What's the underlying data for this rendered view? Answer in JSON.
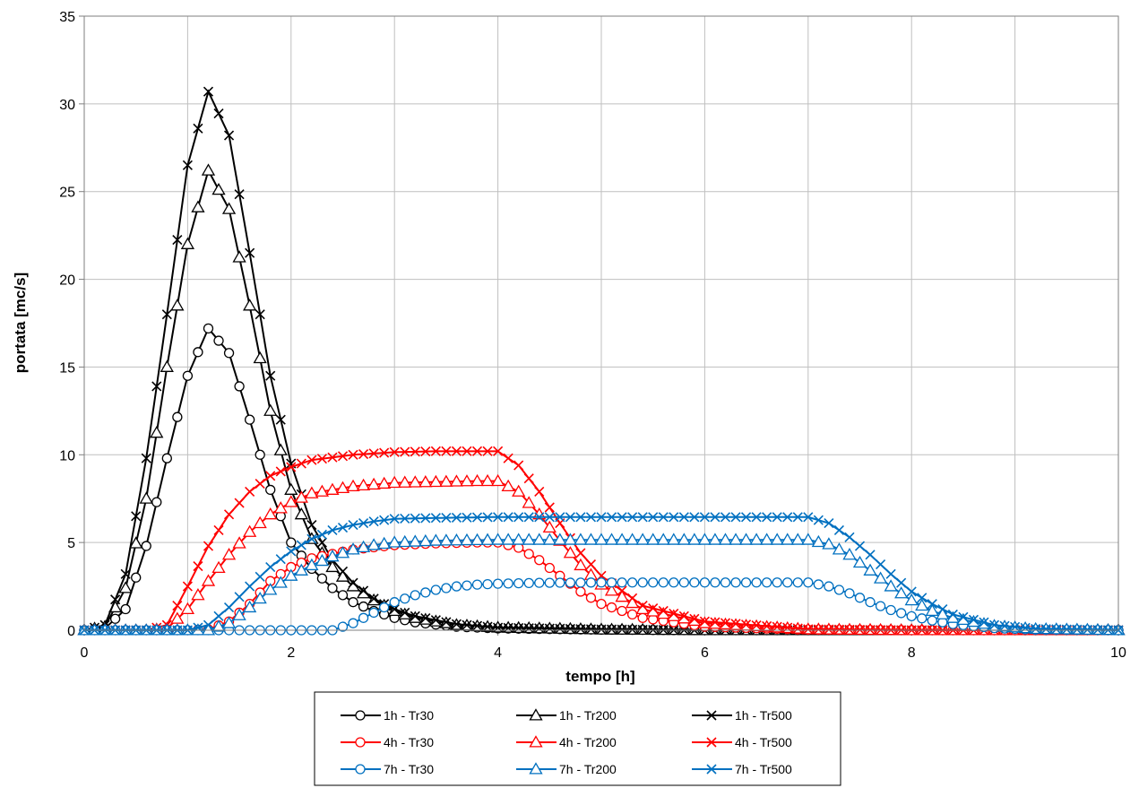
{
  "chart_data": {
    "type": "line",
    "title": "",
    "xlabel": "tempo [h]",
    "ylabel": "portata [mc/s]",
    "xlim": [
      0,
      10
    ],
    "ylim": [
      0,
      35
    ],
    "x_ticks": [
      "0",
      "2",
      "4",
      "6",
      "8",
      "10"
    ],
    "y_ticks": [
      "0",
      "5",
      "10",
      "15",
      "20",
      "25",
      "30",
      "35"
    ],
    "grid": true,
    "legend_position": "bottom",
    "series": [
      {
        "name": "1h - Tr30",
        "color": "#000000",
        "marker": "circle",
        "x": [
          0,
          0.2,
          0.4,
          0.6,
          0.8,
          1.0,
          1.2,
          1.4,
          1.6,
          1.8,
          2.0,
          2.2,
          2.4,
          2.6,
          2.8,
          3.0,
          3.2,
          3.6,
          4.0,
          5.0,
          6.0,
          8.0,
          10.0
        ],
        "y": [
          0,
          0.1,
          1.2,
          4.8,
          9.8,
          14.5,
          17.2,
          15.8,
          12.0,
          8.0,
          5.0,
          3.5,
          2.4,
          1.6,
          1.1,
          0.7,
          0.45,
          0.2,
          0.1,
          0.03,
          0.0,
          0.0,
          0.0
        ]
      },
      {
        "name": "1h - Tr200",
        "color": "#000000",
        "marker": "triangle",
        "x": [
          0,
          0.2,
          0.4,
          0.6,
          0.8,
          1.0,
          1.2,
          1.4,
          1.6,
          1.8,
          2.0,
          2.2,
          2.4,
          2.6,
          2.8,
          3.0,
          3.2,
          3.6,
          4.0,
          5.0,
          6.0,
          8.0,
          10.0
        ],
        "y": [
          0,
          0.2,
          2.4,
          7.5,
          15.0,
          22.0,
          26.2,
          24.0,
          18.5,
          12.5,
          8.0,
          5.2,
          3.6,
          2.5,
          1.7,
          1.1,
          0.7,
          0.3,
          0.15,
          0.04,
          0.0,
          0.0,
          0.0
        ]
      },
      {
        "name": "1h - Tr500",
        "color": "#000000",
        "marker": "x",
        "x": [
          0,
          0.2,
          0.4,
          0.6,
          0.8,
          1.0,
          1.2,
          1.4,
          1.6,
          1.8,
          2.0,
          2.2,
          2.4,
          2.6,
          2.8,
          3.0,
          3.2,
          3.6,
          4.0,
          5.0,
          6.0,
          8.0,
          10.0
        ],
        "y": [
          0,
          0.3,
          3.2,
          9.8,
          18.0,
          26.5,
          30.7,
          28.2,
          21.5,
          14.5,
          9.5,
          6.0,
          4.0,
          2.7,
          1.8,
          1.2,
          0.8,
          0.35,
          0.15,
          0.05,
          0.0,
          0.0,
          0.0
        ]
      },
      {
        "name": "4h - Tr30",
        "color": "#ff0000",
        "marker": "circle",
        "x": [
          0,
          0.6,
          1.0,
          1.2,
          1.4,
          1.6,
          1.8,
          2.0,
          2.2,
          2.6,
          3.0,
          3.4,
          3.8,
          4.0,
          4.2,
          4.4,
          4.6,
          4.8,
          5.0,
          5.4,
          6.0,
          7.0,
          8.0,
          10.0
        ],
        "y": [
          0,
          0,
          0,
          0.05,
          0.5,
          1.5,
          2.8,
          3.6,
          4.1,
          4.6,
          4.85,
          4.95,
          5.0,
          5.0,
          4.7,
          4.0,
          3.1,
          2.2,
          1.5,
          0.7,
          0.2,
          0.03,
          0,
          0
        ]
      },
      {
        "name": "4h - Tr200",
        "color": "#ff0000",
        "marker": "triangle",
        "x": [
          0,
          0.6,
          0.8,
          1.0,
          1.2,
          1.4,
          1.6,
          1.8,
          2.0,
          2.2,
          2.6,
          3.0,
          3.4,
          3.8,
          4.0,
          4.2,
          4.4,
          4.6,
          4.8,
          5.0,
          5.4,
          6.0,
          7.0,
          8.0,
          10.0
        ],
        "y": [
          0,
          0,
          0.1,
          1.2,
          2.8,
          4.3,
          5.6,
          6.6,
          7.3,
          7.8,
          8.2,
          8.4,
          8.45,
          8.5,
          8.5,
          7.9,
          6.6,
          5.1,
          3.7,
          2.6,
          1.2,
          0.4,
          0.05,
          0,
          0
        ]
      },
      {
        "name": "4h - Tr500",
        "color": "#ff0000",
        "marker": "x",
        "x": [
          0,
          0.6,
          0.8,
          1.0,
          1.2,
          1.4,
          1.6,
          1.8,
          2.0,
          2.2,
          2.6,
          3.0,
          3.4,
          3.8,
          4.0,
          4.2,
          4.4,
          4.6,
          4.8,
          5.0,
          5.4,
          6.0,
          7.0,
          8.0,
          10.0
        ],
        "y": [
          0,
          0,
          0.3,
          2.5,
          4.8,
          6.6,
          7.9,
          8.8,
          9.3,
          9.7,
          10.0,
          10.15,
          10.2,
          10.2,
          10.2,
          9.4,
          7.9,
          6.1,
          4.4,
          3.1,
          1.4,
          0.5,
          0.06,
          0,
          0
        ]
      },
      {
        "name": "7h - Tr30",
        "color": "#0070c0",
        "marker": "circle",
        "x": [
          0,
          2.4,
          2.6,
          2.8,
          3.0,
          3.2,
          3.4,
          3.6,
          3.8,
          4.0,
          4.4,
          5.0,
          6.0,
          7.0,
          7.2,
          7.4,
          7.6,
          7.8,
          8.0,
          8.2,
          8.4,
          8.8,
          9.2,
          10.0
        ],
        "y": [
          0,
          0,
          0.4,
          1.0,
          1.6,
          2.0,
          2.3,
          2.5,
          2.6,
          2.65,
          2.7,
          2.72,
          2.72,
          2.72,
          2.5,
          2.1,
          1.6,
          1.15,
          0.8,
          0.55,
          0.35,
          0.12,
          0.03,
          0
        ]
      },
      {
        "name": "7h - Tr200",
        "color": "#0070c0",
        "marker": "triangle",
        "x": [
          0,
          1.2,
          1.4,
          1.6,
          1.8,
          2.0,
          2.2,
          2.4,
          2.6,
          2.8,
          3.0,
          3.4,
          4.0,
          5.0,
          6.0,
          7.0,
          7.2,
          7.4,
          7.6,
          7.8,
          8.0,
          8.2,
          8.4,
          8.8,
          9.2,
          10.0
        ],
        "y": [
          0,
          0,
          0.4,
          1.3,
          2.3,
          3.1,
          3.7,
          4.2,
          4.6,
          4.85,
          5.0,
          5.1,
          5.15,
          5.15,
          5.15,
          5.15,
          4.9,
          4.3,
          3.4,
          2.5,
          1.7,
          1.1,
          0.7,
          0.25,
          0.07,
          0
        ]
      },
      {
        "name": "7h - Tr500",
        "color": "#0070c0",
        "marker": "x",
        "x": [
          0,
          1.0,
          1.2,
          1.4,
          1.6,
          1.8,
          2.0,
          2.2,
          2.4,
          2.6,
          2.8,
          3.0,
          3.4,
          4.0,
          5.0,
          6.0,
          7.0,
          7.2,
          7.4,
          7.6,
          7.8,
          8.0,
          8.2,
          8.4,
          8.8,
          9.2,
          10.0
        ],
        "y": [
          0,
          0,
          0.3,
          1.3,
          2.5,
          3.6,
          4.5,
          5.2,
          5.7,
          6.0,
          6.2,
          6.35,
          6.4,
          6.45,
          6.45,
          6.45,
          6.45,
          6.1,
          5.3,
          4.3,
          3.2,
          2.2,
          1.5,
          0.9,
          0.3,
          0.08,
          0
        ]
      }
    ]
  }
}
